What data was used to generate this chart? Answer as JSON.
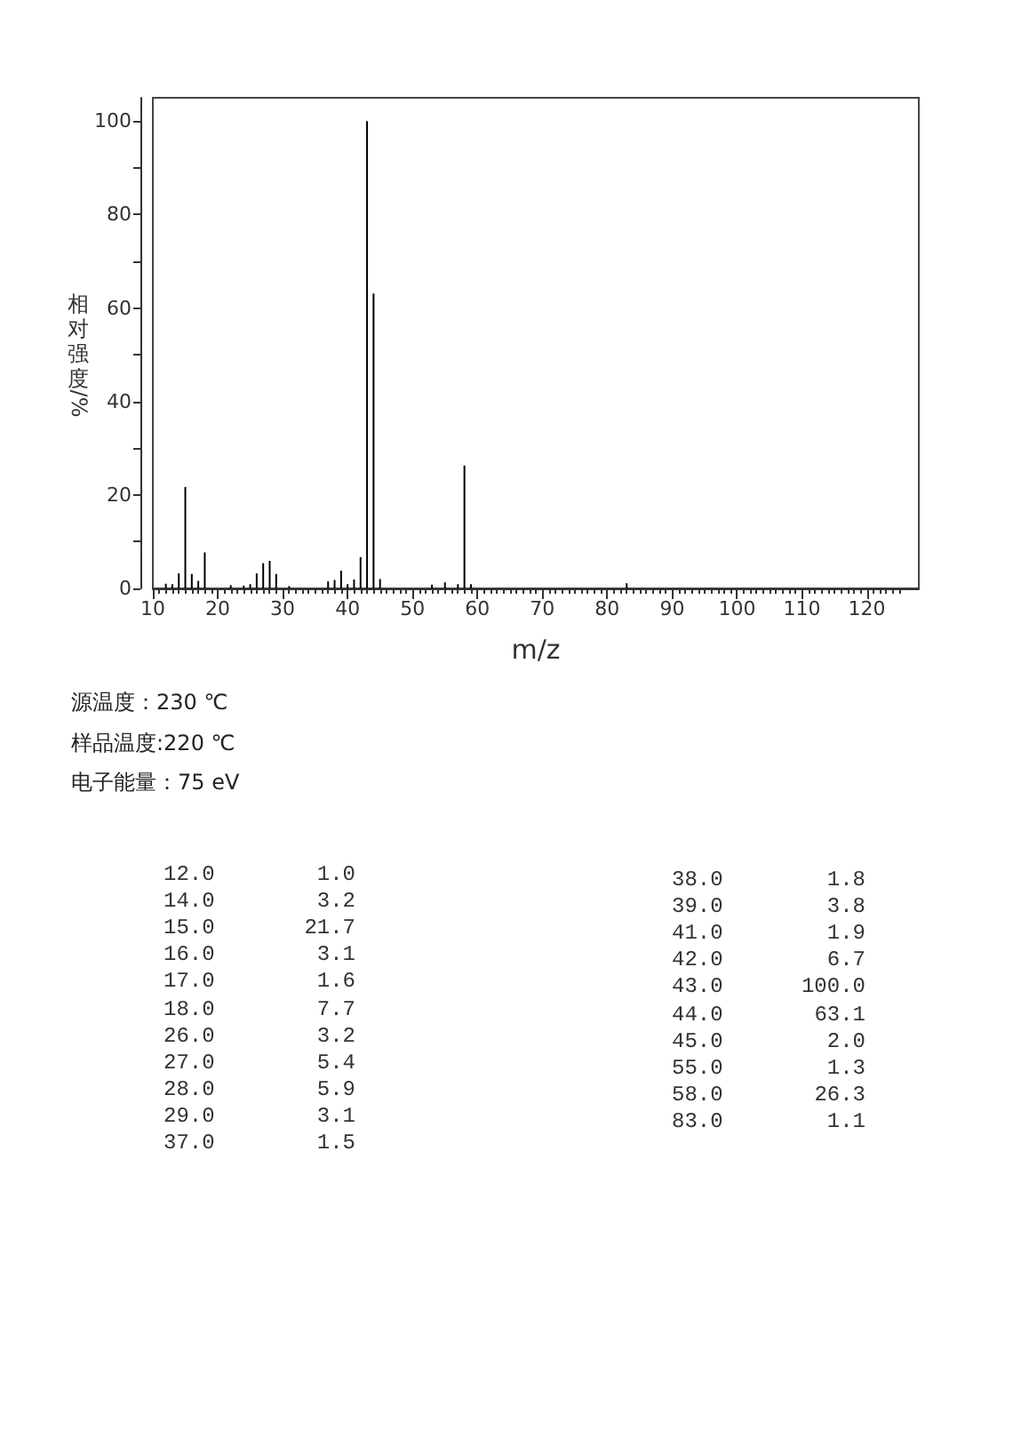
{
  "chart_data": [
    {
      "type": "bar",
      "xlabel": "m/z",
      "ylabel": "相对强度/%",
      "x": [
        12,
        13,
        14,
        15,
        16,
        17,
        18,
        22,
        24,
        25,
        26,
        27,
        28,
        29,
        31,
        37,
        38,
        39,
        40,
        41,
        42,
        43,
        44,
        45,
        53,
        55,
        57,
        58,
        59,
        83
      ],
      "values": [
        1.0,
        0.9,
        3.2,
        21.7,
        3.1,
        1.6,
        7.7,
        0.7,
        0.6,
        0.9,
        3.2,
        5.4,
        5.9,
        3.1,
        0.5,
        1.5,
        1.8,
        3.8,
        0.9,
        1.9,
        6.7,
        100.0,
        63.1,
        2.0,
        0.8,
        1.3,
        0.9,
        26.3,
        0.9,
        1.1
      ],
      "color": "#000000",
      "xlim": [
        10,
        128
      ],
      "xticks": [
        10,
        {
          "value": 11,
          "label": null
        },
        {
          "value": 12,
          "label": null
        },
        {
          "value": 13,
          "label": null
        },
        {
          "value": 14,
          "label": null
        },
        {
          "value": 15,
          "label": null
        },
        {
          "value": 16,
          "label": null
        },
        {
          "value": 17,
          "label": null
        },
        {
          "value": 18,
          "label": null
        },
        {
          "value": 19,
          "label": null
        },
        20,
        {
          "value": 21,
          "label": null
        },
        {
          "value": 22,
          "label": null
        },
        {
          "value": 23,
          "label": null
        },
        {
          "value": 24,
          "label": null
        },
        {
          "value": 25,
          "label": null
        },
        {
          "value": 26,
          "label": null
        },
        {
          "value": 27,
          "label": null
        },
        {
          "value": 28,
          "label": null
        },
        {
          "value": 29,
          "label": null
        },
        30,
        {
          "value": 31,
          "label": null
        },
        {
          "value": 32,
          "label": null
        },
        {
          "value": 33,
          "label": null
        },
        {
          "value": 34,
          "label": null
        },
        {
          "value": 35,
          "label": null
        },
        {
          "value": 36,
          "label": null
        },
        {
          "value": 37,
          "label": null
        },
        {
          "value": 38,
          "label": null
        },
        {
          "value": 39,
          "label": null
        },
        40,
        {
          "value": 41,
          "label": null
        },
        {
          "value": 42,
          "label": null
        },
        {
          "value": 43,
          "label": null
        },
        {
          "value": 44,
          "label": null
        },
        {
          "value": 45,
          "label": null
        },
        {
          "value": 46,
          "label": null
        },
        {
          "value": 47,
          "label": null
        },
        {
          "value": 48,
          "label": null
        },
        {
          "value": 49,
          "label": null
        },
        50,
        {
          "value": 51,
          "label": null
        },
        {
          "value": 52,
          "label": null
        },
        {
          "value": 53,
          "label": null
        },
        {
          "value": 54,
          "label": null
        },
        {
          "value": 55,
          "label": null
        },
        {
          "value": 56,
          "label": null
        },
        {
          "value": 57,
          "label": null
        },
        {
          "value": 58,
          "label": null
        },
        {
          "value": 59,
          "label": null
        },
        60,
        {
          "value": 61,
          "label": null
        },
        {
          "value": 62,
          "label": null
        },
        {
          "value": 63,
          "label": null
        },
        {
          "value": 64,
          "label": null
        },
        {
          "value": 65,
          "label": null
        },
        {
          "value": 66,
          "label": null
        },
        {
          "value": 67,
          "label": null
        },
        {
          "value": 68,
          "label": null
        },
        {
          "value": 69,
          "label": null
        },
        70,
        {
          "value": 71,
          "label": null
        },
        {
          "value": 72,
          "label": null
        },
        {
          "value": 73,
          "label": null
        },
        {
          "value": 74,
          "label": null
        },
        {
          "value": 75,
          "label": null
        },
        {
          "value": 76,
          "label": null
        },
        {
          "value": 77,
          "label": null
        },
        {
          "value": 78,
          "label": null
        },
        {
          "value": 79,
          "label": null
        },
        80,
        {
          "value": 81,
          "label": null
        },
        {
          "value": 82,
          "label": null
        },
        {
          "value": 83,
          "label": null
        },
        {
          "value": 84,
          "label": null
        },
        {
          "value": 85,
          "label": null
        },
        {
          "value": 86,
          "label": null
        },
        {
          "value": 87,
          "label": null
        },
        {
          "value": 88,
          "label": null
        },
        {
          "value": 89,
          "label": null
        },
        90,
        {
          "value": 91,
          "label": null
        },
        {
          "value": 92,
          "label": null
        },
        {
          "value": 93,
          "label": null
        },
        {
          "value": 94,
          "label": null
        },
        {
          "value": 95,
          "label": null
        },
        {
          "value": 96,
          "label": null
        },
        {
          "value": 97,
          "label": null
        },
        {
          "value": 98,
          "label": null
        },
        {
          "value": 99,
          "label": null
        },
        100,
        {
          "value": 101,
          "label": null
        },
        {
          "value": 102,
          "label": null
        },
        {
          "value": 103,
          "label": null
        },
        {
          "value": 104,
          "label": null
        },
        {
          "value": 105,
          "label": null
        },
        {
          "value": 106,
          "label": null
        },
        {
          "value": 107,
          "label": null
        },
        {
          "value": 108,
          "label": null
        },
        {
          "value": 109,
          "label": null
        },
        110,
        {
          "value": 111,
          "label": null
        },
        {
          "value": 112,
          "label": null
        },
        {
          "value": 113,
          "label": null
        },
        {
          "value": 114,
          "label": null
        },
        {
          "value": 115,
          "label": null
        },
        {
          "value": 116,
          "label": null
        },
        {
          "value": 117,
          "label": null
        },
        {
          "value": 118,
          "label": null
        },
        {
          "value": 119,
          "label": null
        },
        120,
        {
          "value": 121,
          "label": null
        },
        {
          "value": 122,
          "label": null
        },
        {
          "value": 123,
          "label": null
        },
        {
          "value": 124,
          "label": null
        },
        {
          "value": 125,
          "label": null
        }
      ],
      "ylim": [
        0,
        105
      ],
      "yticks": [
        0,
        {
          "value": 10,
          "label": null
        },
        20,
        {
          "value": 30,
          "label": null
        },
        40,
        {
          "value": 50,
          "label": null
        },
        60,
        {
          "value": 70,
          "label": null
        },
        80,
        {
          "value": 90,
          "label": null
        },
        100
      ],
      "annotations": [
        "源温度：230 ℃",
        "样品温度:220 ℃",
        "电子能量：75 eV"
      ]
    },
    {
      "type": "other",
      "annotations": [
        "12.0",
        "1.0",
        "14.0",
        "3.2",
        "15.0",
        "21.7",
        "16.0",
        "3.1",
        "17.0",
        "1.6",
        "18.0",
        "7.7",
        "26.0",
        "3.2",
        "27.0",
        "5.4",
        "28.0",
        "5.9",
        "29.0",
        "3.1",
        "37.0",
        "1.5",
        "38.0",
        "1.8",
        "39.0",
        "3.8",
        "41.0",
        "1.9",
        "42.0",
        "6.7",
        "43.0",
        "100.0",
        "44.0",
        "63.1",
        "45.0",
        "2.0",
        "55.0",
        "1.3",
        "58.0",
        "26.3",
        "83.0",
        "1.1"
      ]
    }
  ]
}
